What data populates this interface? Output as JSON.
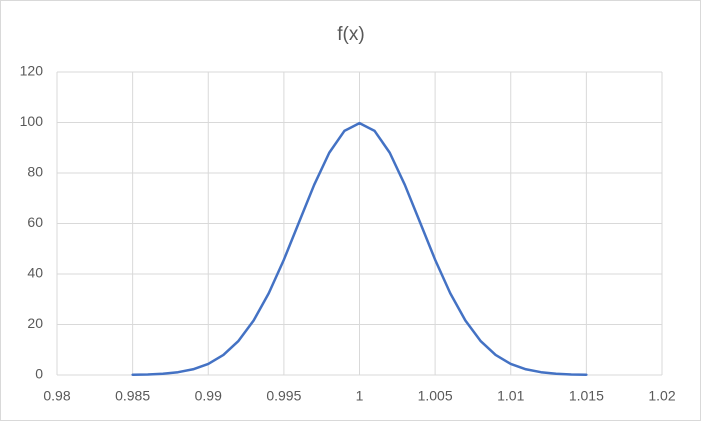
{
  "chart_data": {
    "type": "line",
    "title": "f(x)",
    "x": [
      0.985,
      0.986,
      0.987,
      0.988,
      0.989,
      0.99,
      0.991,
      0.992,
      0.993,
      0.994,
      0.995,
      0.996,
      0.997,
      0.998,
      0.999,
      1,
      1.001,
      1.002,
      1.003,
      1.004,
      1.005,
      1.006,
      1.007,
      1.008,
      1.009,
      1.01,
      1.011,
      1.012,
      1.013,
      1.014,
      1.015
    ],
    "series": [
      {
        "color": "#4472c4",
        "values": [
          0.09,
          0.22,
          0.51,
          1.11,
          2.27,
          4.38,
          7.94,
          13.5,
          21.57,
          32.38,
          45.66,
          60.49,
          75.28,
          88.02,
          96.67,
          99.74,
          96.67,
          88.02,
          75.28,
          60.49,
          45.66,
          32.38,
          21.57,
          13.5,
          7.94,
          4.38,
          2.27,
          1.11,
          0.51,
          0.22,
          0.09
        ]
      }
    ],
    "xlim": [
      0.98,
      1.02
    ],
    "xticks": [
      0.98,
      0.985,
      0.99,
      0.995,
      1,
      1.005,
      1.01,
      1.015,
      1.02
    ],
    "ylim": [
      0,
      120
    ],
    "yticks": [
      0,
      20,
      40,
      60,
      80,
      100,
      120
    ],
    "grid": true
  }
}
